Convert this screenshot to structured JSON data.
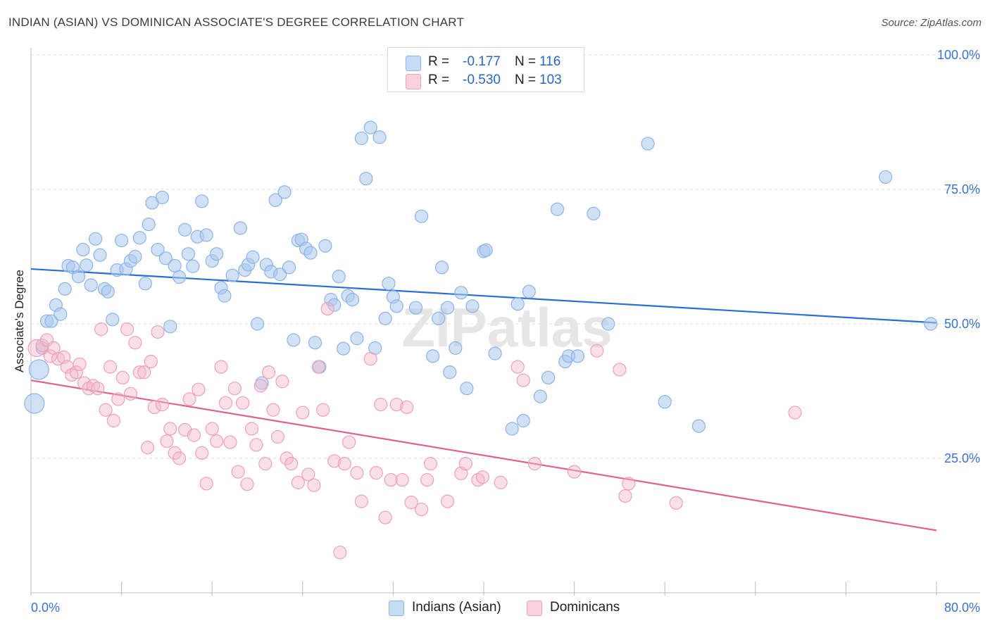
{
  "title": "INDIAN (ASIAN) VS DOMINICAN ASSOCIATE'S DEGREE CORRELATION CHART",
  "source": "Source: ZipAtlas.com",
  "watermark": "ZIPatlas",
  "legend": {
    "r_label": "R =",
    "n_label": "N =",
    "rows": [
      {
        "series": "Indians (Asian)",
        "r": "-0.177",
        "n": "116"
      },
      {
        "series": "Dominicans",
        "r": "-0.530",
        "n": "103"
      }
    ]
  },
  "chart_data": {
    "type": "scatter",
    "title": "INDIAN (ASIAN) VS DOMINICAN ASSOCIATE'S DEGREE CORRELATION CHART",
    "xlabel": "",
    "ylabel": "Associate's Degree",
    "xlim": [
      0,
      80
    ],
    "ylim": [
      0,
      100
    ],
    "x_tick_labels": [
      "0.0%",
      "80.0%"
    ],
    "y_ticks": [
      25,
      50,
      75,
      100
    ],
    "y_tick_labels": [
      "25.0%",
      "50.0%",
      "75.0%",
      "100.0%"
    ],
    "grid": true,
    "legend_position": "bottom",
    "colors": {
      "indians": "#a9c8ef",
      "indians_line": "#2a6fd1",
      "dominicans": "#f3b7ca",
      "dominicans_line": "#e0608f"
    },
    "series": [
      {
        "name": "Indians (Asian)",
        "color": "#a9c8ef",
        "trend": {
          "x": [
            0,
            80
          ],
          "y": [
            60.2,
            50.2
          ]
        },
        "points": [
          [
            0.3,
            35.2
          ],
          [
            0.7,
            41.5
          ],
          [
            1.0,
            45.5
          ],
          [
            1.4,
            50.5
          ],
          [
            1.8,
            50.5
          ],
          [
            2.2,
            53.5
          ],
          [
            2.6,
            51.8
          ],
          [
            3.0,
            56.5
          ],
          [
            3.3,
            60.8
          ],
          [
            3.7,
            60.5
          ],
          [
            4.2,
            58.8
          ],
          [
            4.6,
            63.8
          ],
          [
            4.9,
            60.9
          ],
          [
            5.3,
            57.2
          ],
          [
            5.7,
            65.8
          ],
          [
            6.1,
            62.8
          ],
          [
            6.5,
            56.5
          ],
          [
            6.8,
            56.0
          ],
          [
            7.2,
            50.8
          ],
          [
            7.6,
            60.0
          ],
          [
            8.0,
            65.5
          ],
          [
            8.4,
            60.2
          ],
          [
            8.8,
            61.7
          ],
          [
            9.2,
            62.5
          ],
          [
            9.6,
            66.0
          ],
          [
            10.1,
            57.5
          ],
          [
            10.4,
            68.5
          ],
          [
            10.7,
            72.5
          ],
          [
            11.2,
            63.8
          ],
          [
            11.6,
            73.5
          ],
          [
            11.9,
            62.2
          ],
          [
            12.3,
            49.5
          ],
          [
            12.7,
            60.8
          ],
          [
            13.1,
            58.7
          ],
          [
            13.6,
            67.5
          ],
          [
            13.9,
            63.0
          ],
          [
            14.3,
            60.7
          ],
          [
            14.7,
            66.2
          ],
          [
            15.1,
            72.8
          ],
          [
            15.5,
            66.5
          ],
          [
            16.0,
            61.7
          ],
          [
            16.4,
            63.0
          ],
          [
            16.8,
            56.7
          ],
          [
            17.1,
            55.2
          ],
          [
            17.8,
            59.0
          ],
          [
            18.5,
            67.8
          ],
          [
            18.9,
            60.0
          ],
          [
            19.2,
            61.0
          ],
          [
            19.6,
            62.4
          ],
          [
            20.0,
            50.0
          ],
          [
            20.4,
            39.0
          ],
          [
            20.8,
            61.0
          ],
          [
            21.2,
            59.7
          ],
          [
            21.6,
            73.0
          ],
          [
            22.0,
            59.2
          ],
          [
            22.4,
            74.5
          ],
          [
            22.8,
            60.5
          ],
          [
            23.2,
            47.0
          ],
          [
            23.6,
            65.5
          ],
          [
            23.9,
            65.7
          ],
          [
            24.3,
            64.0
          ],
          [
            24.7,
            63.2
          ],
          [
            25.1,
            46.5
          ],
          [
            25.5,
            42.0
          ],
          [
            26.0,
            64.5
          ],
          [
            26.5,
            54.5
          ],
          [
            26.8,
            53.5
          ],
          [
            27.2,
            58.8
          ],
          [
            27.6,
            45.4
          ],
          [
            28.0,
            55.2
          ],
          [
            28.4,
            54.5
          ],
          [
            28.8,
            47.3
          ],
          [
            29.2,
            84.5
          ],
          [
            29.6,
            77.0
          ],
          [
            30.0,
            86.5
          ],
          [
            30.4,
            45.5
          ],
          [
            30.8,
            84.7
          ],
          [
            31.3,
            51.0
          ],
          [
            31.6,
            57.5
          ],
          [
            32.0,
            55.0
          ],
          [
            32.3,
            53.3
          ],
          [
            34.0,
            53.0
          ],
          [
            34.5,
            70.0
          ],
          [
            35.5,
            44.0
          ],
          [
            36.0,
            51.0
          ],
          [
            36.3,
            60.5
          ],
          [
            36.8,
            53.0
          ],
          [
            37.0,
            41.0
          ],
          [
            37.5,
            45.5
          ],
          [
            38.0,
            55.8
          ],
          [
            38.5,
            38.0
          ],
          [
            39.0,
            53.3
          ],
          [
            40.0,
            63.5
          ],
          [
            40.2,
            63.7
          ],
          [
            41.0,
            44.5
          ],
          [
            42.5,
            30.5
          ],
          [
            43.0,
            53.7
          ],
          [
            43.5,
            32.0
          ],
          [
            44.0,
            56.0
          ],
          [
            45.0,
            36.5
          ],
          [
            45.7,
            40.0
          ],
          [
            46.5,
            71.3
          ],
          [
            47.2,
            43.0
          ],
          [
            47.5,
            44.0
          ],
          [
            48.3,
            44.0
          ],
          [
            49.7,
            70.5
          ],
          [
            51.0,
            50.0
          ],
          [
            54.5,
            83.5
          ],
          [
            56.0,
            35.5
          ],
          [
            59.0,
            31.0
          ],
          [
            75.5,
            77.3
          ],
          [
            79.5,
            50.0
          ]
        ]
      },
      {
        "name": "Dominicans",
        "color": "#f3b7ca",
        "trend": {
          "x": [
            0,
            80
          ],
          "y": [
            39.5,
            11.6
          ]
        },
        "points": [
          [
            0.5,
            45.5
          ],
          [
            1.0,
            46.0
          ],
          [
            1.4,
            47.0
          ],
          [
            1.7,
            44.0
          ],
          [
            2.0,
            45.5
          ],
          [
            2.4,
            43.5
          ],
          [
            2.9,
            43.8
          ],
          [
            3.2,
            42.0
          ],
          [
            3.6,
            40.5
          ],
          [
            4.0,
            41.0
          ],
          [
            4.3,
            42.5
          ],
          [
            4.7,
            39.0
          ],
          [
            5.1,
            38.0
          ],
          [
            5.5,
            38.5
          ],
          [
            5.9,
            38.0
          ],
          [
            6.2,
            49.0
          ],
          [
            6.6,
            34.0
          ],
          [
            7.0,
            42.0
          ],
          [
            7.3,
            32.0
          ],
          [
            7.7,
            36.0
          ],
          [
            8.1,
            40.0
          ],
          [
            8.5,
            49.0
          ],
          [
            8.8,
            37.0
          ],
          [
            9.2,
            46.5
          ],
          [
            9.6,
            41.0
          ],
          [
            10.0,
            41.0
          ],
          [
            10.3,
            27.0
          ],
          [
            10.6,
            43.0
          ],
          [
            10.9,
            34.5
          ],
          [
            11.2,
            48.5
          ],
          [
            11.6,
            35.0
          ],
          [
            12.0,
            28.2
          ],
          [
            12.3,
            30.5
          ],
          [
            12.7,
            26.0
          ],
          [
            13.1,
            25.0
          ],
          [
            13.6,
            30.3
          ],
          [
            14.0,
            36.0
          ],
          [
            14.4,
            29.3
          ],
          [
            14.8,
            37.8
          ],
          [
            15.1,
            26.0
          ],
          [
            15.5,
            20.3
          ],
          [
            16.0,
            30.5
          ],
          [
            16.4,
            28.2
          ],
          [
            16.8,
            42.0
          ],
          [
            17.2,
            35.3
          ],
          [
            17.6,
            28.0
          ],
          [
            18.0,
            38.0
          ],
          [
            18.3,
            22.5
          ],
          [
            18.7,
            35.3
          ],
          [
            19.1,
            20.2
          ],
          [
            19.5,
            30.5
          ],
          [
            19.9,
            27.5
          ],
          [
            20.3,
            38.5
          ],
          [
            20.7,
            24.0
          ],
          [
            21.0,
            41.0
          ],
          [
            21.4,
            34.0
          ],
          [
            21.8,
            29.0
          ],
          [
            22.2,
            39.3
          ],
          [
            22.6,
            25.0
          ],
          [
            23.0,
            24.0
          ],
          [
            23.6,
            20.5
          ],
          [
            24.0,
            33.5
          ],
          [
            24.5,
            22.0
          ],
          [
            25.0,
            20.0
          ],
          [
            25.4,
            42.0
          ],
          [
            25.8,
            34.0
          ],
          [
            26.2,
            52.8
          ],
          [
            26.8,
            24.5
          ],
          [
            27.3,
            7.5
          ],
          [
            27.7,
            24.0
          ],
          [
            28.1,
            28.0
          ],
          [
            28.8,
            22.3
          ],
          [
            29.2,
            17.0
          ],
          [
            30.0,
            43.5
          ],
          [
            30.5,
            22.3
          ],
          [
            30.9,
            35.0
          ],
          [
            31.3,
            14.0
          ],
          [
            31.8,
            21.0
          ],
          [
            32.3,
            35.0
          ],
          [
            32.8,
            21.0
          ],
          [
            33.2,
            34.5
          ],
          [
            33.6,
            16.8
          ],
          [
            34.5,
            15.5
          ],
          [
            35.0,
            21.0
          ],
          [
            35.3,
            24.0
          ],
          [
            36.8,
            17.0
          ],
          [
            38.0,
            22.2
          ],
          [
            38.4,
            24.0
          ],
          [
            39.5,
            21.0
          ],
          [
            39.9,
            21.5
          ],
          [
            41.5,
            20.5
          ],
          [
            43.0,
            42.0
          ],
          [
            43.5,
            39.5
          ],
          [
            44.5,
            24.0
          ],
          [
            48.0,
            22.5
          ],
          [
            50.0,
            45.0
          ],
          [
            52.0,
            41.5
          ],
          [
            52.5,
            18.0
          ],
          [
            52.8,
            20.3
          ],
          [
            57.0,
            16.7
          ],
          [
            67.5,
            33.5
          ]
        ]
      }
    ]
  }
}
